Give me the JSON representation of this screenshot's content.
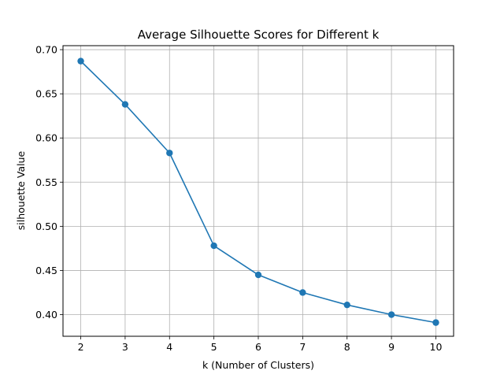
{
  "chart_data": {
    "type": "line",
    "title": "Average Silhouette Scores for Different k",
    "xlabel": "k (Number of Clusters)",
    "ylabel": "silhouette Value",
    "x": [
      2,
      3,
      4,
      5,
      6,
      7,
      8,
      9,
      10
    ],
    "series": [
      {
        "values": [
          0.687,
          0.638,
          0.583,
          0.478,
          0.445,
          0.425,
          0.411,
          0.4,
          0.391
        ],
        "color": "#1f77b4",
        "marker": "circle"
      }
    ],
    "xlim": [
      1.6,
      10.4
    ],
    "ylim": [
      0.3755,
      0.7045
    ],
    "xticks": [
      "2",
      "3",
      "4",
      "5",
      "6",
      "7",
      "8",
      "9",
      "10"
    ],
    "yticks": [
      "0.40",
      "0.45",
      "0.50",
      "0.55",
      "0.60",
      "0.65",
      "0.70"
    ],
    "grid": true,
    "grid_color": "#b0b0b0"
  }
}
